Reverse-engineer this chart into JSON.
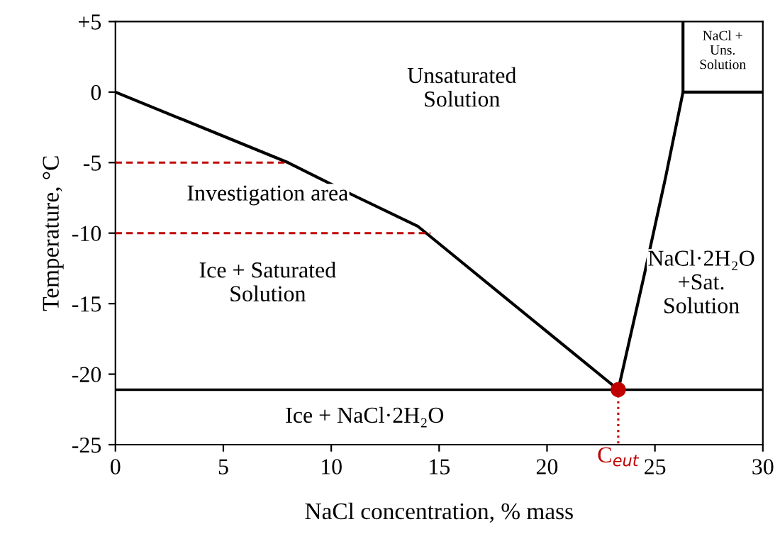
{
  "chart_data": {
    "type": "line",
    "xlabel": "NaCl concentration, % mass",
    "ylabel": "Temperature, °C",
    "xlim": [
      0,
      30
    ],
    "xticks": [
      0,
      5,
      10,
      15,
      20,
      25,
      30
    ],
    "ylim": [
      -25,
      5
    ],
    "yticks": [
      {
        "value": 5,
        "label": "+5"
      },
      0,
      -5,
      -10,
      -15,
      -20,
      -25
    ],
    "grid": false,
    "series": [
      {
        "color": "#000000",
        "line_style": "solid",
        "marker": "none",
        "x": [
          0,
          4,
          8,
          11,
          14,
          18,
          23.3
        ],
        "values": [
          0,
          -2.5,
          -5,
          -7.3,
          -9.5,
          -14.5,
          -21.1
        ]
      },
      {
        "color": "#000000",
        "line_style": "solid",
        "marker": "none",
        "x": [
          23.3,
          24.5,
          25.5,
          26.3,
          26.3
        ],
        "values": [
          -21.1,
          -13,
          -6,
          0,
          5
        ]
      },
      {
        "color": "#000000",
        "line_style": "solid",
        "marker": "none",
        "x": [
          26.3,
          30
        ],
        "values": [
          0,
          0
        ]
      },
      {
        "color": "#c00000",
        "line_style": "dashed",
        "marker": "none",
        "x": [
          0,
          8
        ],
        "values": [
          -5,
          -5
        ]
      },
      {
        "color": "#c00000",
        "line_style": "dashed",
        "marker": "none",
        "x": [
          0,
          14.6
        ],
        "values": [
          -10,
          -10
        ]
      },
      {
        "color": "#c00000",
        "line_style": "dotted",
        "marker": "none",
        "x": [
          23.3,
          23.3
        ],
        "values": [
          -21.1,
          -25
        ]
      },
      {
        "type": "scatter",
        "color": "#c00000",
        "marker": "circle",
        "x": [
          23.3
        ],
        "values": [
          -21.1
        ]
      }
    ],
    "ref_lines": [
      {
        "axis": "y",
        "value": -21.1,
        "color": "#000000"
      }
    ],
    "annotations": [
      "Unsaturated\nSolution",
      "Investigation area",
      "Ice + Saturated\nSolution",
      "Ice + NaCl·2H₂O",
      "NaCl·2H₂O\n+Sat.\nSolution",
      "NaCl +\nUns.\nSolution",
      {
        "text": "C$_{eut}$",
        "x": 23.3
      }
    ]
  }
}
